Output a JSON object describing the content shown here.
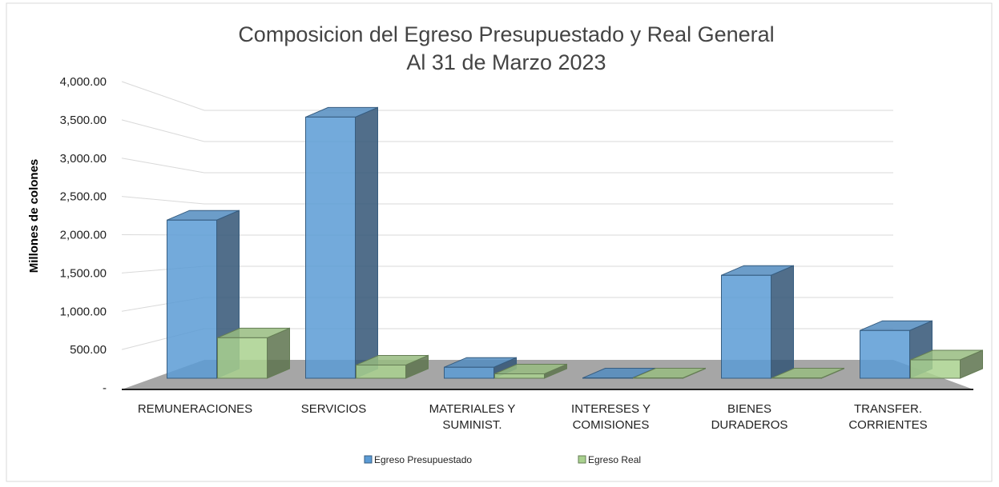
{
  "chart_data": {
    "type": "bar3d",
    "title": "Composicion del Egreso Presupuestado y Real General",
    "subtitle": "Al 31 de Marzo 2023",
    "y_label": "Millones de colones",
    "categories": [
      "REMUNERACIONES",
      "SERVICIOS",
      "MATERIALES Y SUMINIST.",
      "INTERESES Y COMISIONES",
      "BIENES DURADEROS",
      "TRANSFER. CORRIENTES"
    ],
    "series": [
      {
        "name": "Egreso Presupuestado",
        "color": "#5b9bd5",
        "values": [
          2150,
          3550,
          150,
          5,
          1400,
          650
        ]
      },
      {
        "name": "Egreso Real",
        "color": "#a9d18e",
        "values": [
          550,
          180,
          60,
          5,
          5,
          250
        ]
      }
    ],
    "ylim": [
      0,
      4000
    ],
    "yticks": [
      {
        "value": 0,
        "label": "-"
      },
      {
        "value": 500,
        "label": "500.00"
      },
      {
        "value": 1000,
        "label": "1,000.00"
      },
      {
        "value": 1500,
        "label": "1,500.00"
      },
      {
        "value": 2000,
        "label": "2,000.00"
      },
      {
        "value": 2500,
        "label": "2,500.00"
      },
      {
        "value": 3000,
        "label": "3,000.00"
      },
      {
        "value": 3500,
        "label": "3,500.00"
      },
      {
        "value": 4000,
        "label": "4,000.00"
      }
    ],
    "grid": true,
    "legend": "bottom"
  }
}
